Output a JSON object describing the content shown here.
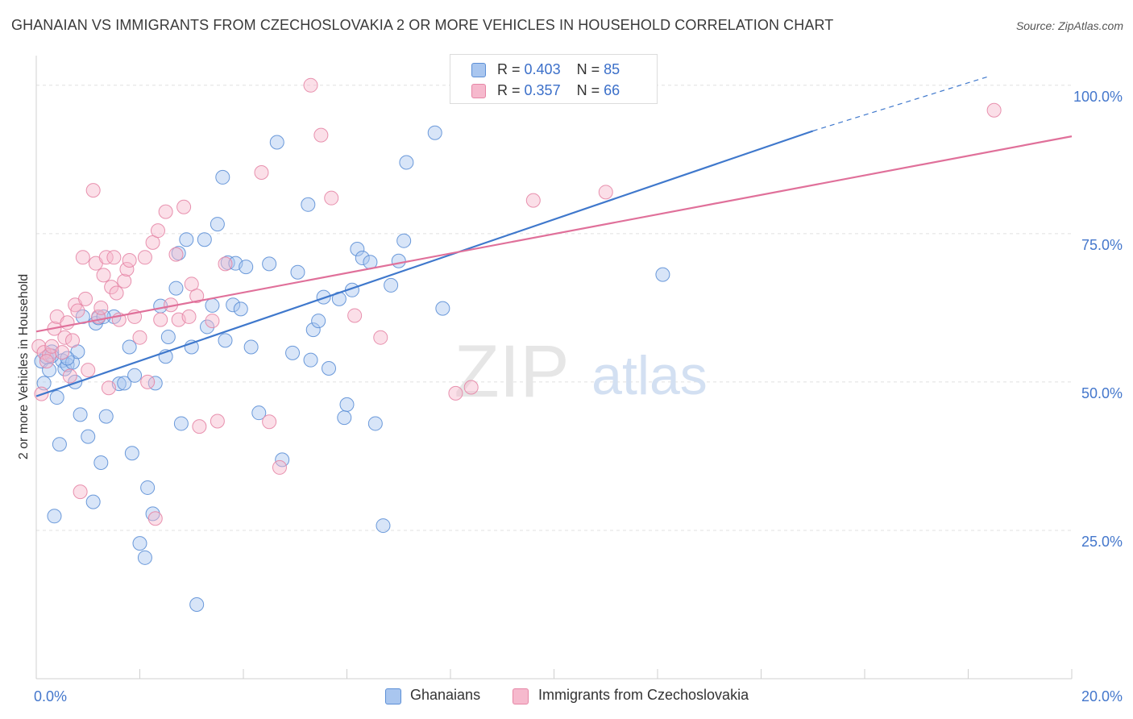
{
  "header": {
    "title": "GHANAIAN VS IMMIGRANTS FROM CZECHOSLOVAKIA 2 OR MORE VEHICLES IN HOUSEHOLD CORRELATION CHART",
    "source": "Source: ZipAtlas.com"
  },
  "watermark": {
    "zip": "ZIP",
    "atlas": "atlas"
  },
  "legend_top": [
    {
      "r_label": "R =",
      "r_value": "0.403",
      "n_label": "N =",
      "n_value": "85"
    },
    {
      "r_label": "R =",
      "r_value": "0.357",
      "n_label": "N =",
      "n_value": "66"
    }
  ],
  "legend_bottom": [
    "Ghanaians",
    "Immigrants from Czechoslovakia"
  ],
  "colors": {
    "blue_fill": "#a9c6ef",
    "blue_stroke": "#5c8fd6",
    "blue_line": "#3f78cc",
    "pink_fill": "#f6b9cd",
    "pink_stroke": "#e686a6",
    "pink_line": "#e0709a",
    "grid": "#e1e1e1",
    "tick_label": "#4477cc"
  },
  "chart_data": {
    "type": "scatter",
    "title": "GHANAIAN VS IMMIGRANTS FROM CZECHOSLOVAKIA 2 OR MORE VEHICLES IN HOUSEHOLD CORRELATION CHART",
    "xlabel": "",
    "ylabel": "2 or more Vehicles in Household",
    "xlim": [
      0,
      20
    ],
    "ylim": [
      0,
      105
    ],
    "x_tick_labels": [
      "0.0%",
      "20.0%"
    ],
    "y_ticks": [
      25,
      50,
      75,
      100
    ],
    "y_tick_labels": [
      "25.0%",
      "50.0%",
      "75.0%",
      "100.0%"
    ],
    "grid": true,
    "legend_position": "top-center",
    "series": [
      {
        "name": "Ghanaians",
        "trend": {
          "x": [
            0,
            15
          ],
          "y": [
            47.6,
            92.3
          ],
          "dashed_to": [
            18.4,
            101.5
          ]
        },
        "points": [
          [
            0.1,
            53.5
          ],
          [
            0.15,
            49.8
          ],
          [
            0.2,
            54.2
          ],
          [
            0.25,
            52
          ],
          [
            0.3,
            55.1
          ],
          [
            0.35,
            27.4
          ],
          [
            0.4,
            47.4
          ],
          [
            0.45,
            39.5
          ],
          [
            0.5,
            53.6
          ],
          [
            0.55,
            52.2
          ],
          [
            0.6,
            52.9
          ],
          [
            0.7,
            53.3
          ],
          [
            0.75,
            50
          ],
          [
            0.8,
            55.1
          ],
          [
            0.85,
            44.5
          ],
          [
            0.9,
            61
          ],
          [
            1.0,
            40.8
          ],
          [
            1.1,
            29.8
          ],
          [
            1.15,
            59.9
          ],
          [
            1.2,
            60.8
          ],
          [
            1.25,
            36.4
          ],
          [
            1.35,
            44.2
          ],
          [
            1.5,
            61
          ],
          [
            1.6,
            49.7
          ],
          [
            1.7,
            49.8
          ],
          [
            1.8,
            55.9
          ],
          [
            1.85,
            38
          ],
          [
            1.9,
            51.1
          ],
          [
            2.0,
            22.8
          ],
          [
            2.1,
            20.4
          ],
          [
            2.15,
            32.2
          ],
          [
            2.25,
            27.8
          ],
          [
            2.4,
            62.8
          ],
          [
            2.5,
            54.3
          ],
          [
            2.55,
            57.6
          ],
          [
            2.7,
            65.8
          ],
          [
            2.75,
            71.7
          ],
          [
            2.8,
            43
          ],
          [
            2.9,
            74
          ],
          [
            3.0,
            55.9
          ],
          [
            3.1,
            12.5
          ],
          [
            3.25,
            74
          ],
          [
            3.3,
            59.3
          ],
          [
            3.4,
            62.9
          ],
          [
            3.5,
            76.6
          ],
          [
            3.6,
            84.5
          ],
          [
            3.7,
            70.1
          ],
          [
            3.8,
            63
          ],
          [
            3.85,
            70
          ],
          [
            3.95,
            62.3
          ],
          [
            4.05,
            69.4
          ],
          [
            4.15,
            55.9
          ],
          [
            4.3,
            44.8
          ],
          [
            4.5,
            69.9
          ],
          [
            4.65,
            90.4
          ],
          [
            4.75,
            36.9
          ],
          [
            4.95,
            54.9
          ],
          [
            5.05,
            68.5
          ],
          [
            5.25,
            79.9
          ],
          [
            5.35,
            58.8
          ],
          [
            5.45,
            60.3
          ],
          [
            5.55,
            64.3
          ],
          [
            5.65,
            52.3
          ],
          [
            5.85,
            64
          ],
          [
            5.95,
            44
          ],
          [
            6.0,
            46.2
          ],
          [
            6.1,
            65.5
          ],
          [
            6.2,
            72.4
          ],
          [
            6.3,
            70.9
          ],
          [
            6.45,
            70.2
          ],
          [
            6.55,
            43
          ],
          [
            6.7,
            25.8
          ],
          [
            6.85,
            66.3
          ],
          [
            7.0,
            70.4
          ],
          [
            7.1,
            73.8
          ],
          [
            7.15,
            87
          ],
          [
            7.7,
            92
          ],
          [
            7.85,
            62.4
          ],
          [
            12.1,
            68.1
          ],
          [
            0.3,
            54.4
          ],
          [
            0.6,
            54
          ],
          [
            1.3,
            61
          ],
          [
            2.3,
            49.8
          ],
          [
            3.65,
            57
          ],
          [
            5.3,
            53.7
          ]
        ]
      },
      {
        "name": "Immigrants from Czechoslovakia",
        "trend": {
          "x": [
            0,
            20
          ],
          "y": [
            58.5,
            91.4
          ]
        },
        "points": [
          [
            0.05,
            56
          ],
          [
            0.1,
            48
          ],
          [
            0.15,
            55
          ],
          [
            0.25,
            54.5
          ],
          [
            0.3,
            56
          ],
          [
            0.35,
            59
          ],
          [
            0.4,
            61
          ],
          [
            0.5,
            55
          ],
          [
            0.55,
            57.5
          ],
          [
            0.6,
            60
          ],
          [
            0.65,
            51
          ],
          [
            0.7,
            57
          ],
          [
            0.75,
            63
          ],
          [
            0.8,
            62
          ],
          [
            0.85,
            31.5
          ],
          [
            0.9,
            71
          ],
          [
            0.95,
            64
          ],
          [
            1.0,
            52
          ],
          [
            1.1,
            82.3
          ],
          [
            1.15,
            70
          ],
          [
            1.2,
            61
          ],
          [
            1.25,
            62.5
          ],
          [
            1.3,
            68
          ],
          [
            1.35,
            71
          ],
          [
            1.4,
            49
          ],
          [
            1.45,
            66
          ],
          [
            1.5,
            71
          ],
          [
            1.55,
            65
          ],
          [
            1.6,
            60.5
          ],
          [
            1.7,
            67
          ],
          [
            1.75,
            69
          ],
          [
            1.8,
            70.5
          ],
          [
            1.9,
            61
          ],
          [
            2.0,
            57.5
          ],
          [
            2.1,
            71
          ],
          [
            2.15,
            50
          ],
          [
            2.25,
            73.5
          ],
          [
            2.3,
            27
          ],
          [
            2.35,
            75.5
          ],
          [
            2.4,
            60.5
          ],
          [
            2.5,
            78.7
          ],
          [
            2.6,
            63
          ],
          [
            2.7,
            71.5
          ],
          [
            2.75,
            60.5
          ],
          [
            2.85,
            79.5
          ],
          [
            2.95,
            61
          ],
          [
            3.0,
            66.5
          ],
          [
            3.1,
            64.5
          ],
          [
            3.15,
            42.5
          ],
          [
            3.4,
            60.3
          ],
          [
            3.5,
            43.4
          ],
          [
            3.65,
            69.9
          ],
          [
            4.35,
            85.3
          ],
          [
            4.5,
            43.3
          ],
          [
            4.7,
            35.6
          ],
          [
            5.3,
            100
          ],
          [
            5.5,
            91.6
          ],
          [
            5.7,
            81
          ],
          [
            6.15,
            61.2
          ],
          [
            6.65,
            57.5
          ],
          [
            8.1,
            48.1
          ],
          [
            8.4,
            49.1
          ],
          [
            9.6,
            80.6
          ],
          [
            11.0,
            82
          ],
          [
            18.5,
            95.8
          ],
          [
            0.2,
            53.5
          ]
        ]
      }
    ]
  }
}
